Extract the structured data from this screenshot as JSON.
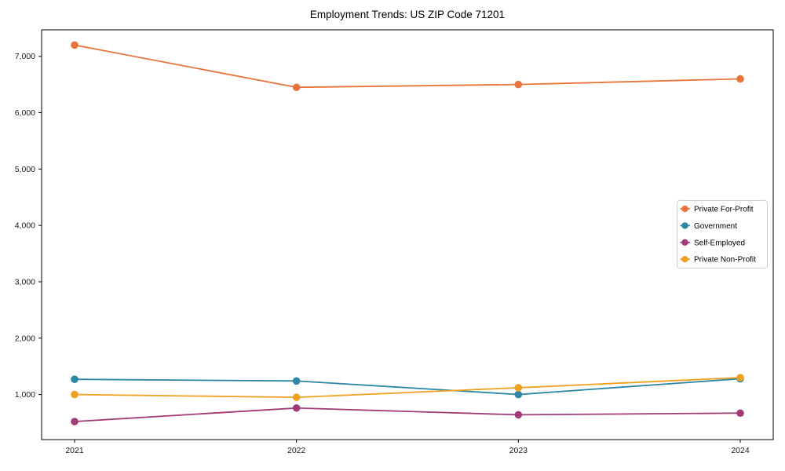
{
  "chart_data": {
    "type": "line",
    "title": "Employment Trends: US ZIP Code 71201",
    "xlabel": "",
    "ylabel": "",
    "categories": [
      "2021",
      "2022",
      "2023",
      "2024"
    ],
    "series": [
      {
        "name": "Private For-Profit",
        "color": "#E8743B",
        "values": [
          7200,
          6450,
          6500,
          6600
        ]
      },
      {
        "name": "Government",
        "color": "#2E86A5",
        "values": [
          1270,
          1240,
          1000,
          1280
        ]
      },
      {
        "name": "Self-Employed",
        "color": "#A23B78",
        "values": [
          520,
          760,
          640,
          670
        ]
      },
      {
        "name": "Private Non-Profit",
        "color": "#F0A020",
        "values": [
          1000,
          950,
          1120,
          1300
        ]
      }
    ],
    "yticks": {
      "values": [
        1000,
        2000,
        3000,
        4000,
        5000,
        6000,
        7000
      ],
      "labels": [
        "1,000",
        "2,000",
        "3,000",
        "4,000",
        "5,000",
        "6,000",
        "7,000"
      ]
    },
    "ylim": [
      200,
      7470
    ],
    "grid": false,
    "marker": "circle",
    "legend": {
      "position": "center-right",
      "border_color": "#cccccc",
      "background": "#ffffff"
    },
    "frame": {
      "spine_color": "#000000",
      "background": "#ffffff"
    }
  }
}
